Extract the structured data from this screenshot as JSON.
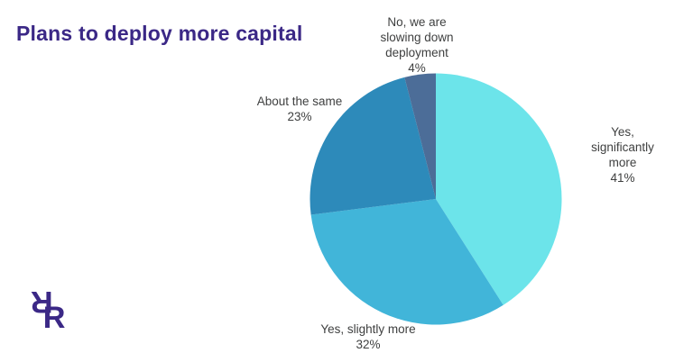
{
  "title": "Plans to deploy more capital",
  "colors": {
    "title": "#3b2886",
    "label_text": "#3f4040",
    "background": "#ffffff",
    "logo": "#3b2886"
  },
  "logo": {
    "letter": "R"
  },
  "chart_data": {
    "type": "pie",
    "title": "Plans to deploy more capital",
    "start_angle_deg": -90,
    "direction": "clockwise",
    "legend_position": "none",
    "categories": [
      "Yes, significantly more",
      "Yes, slightly more",
      "About the same",
      "No, we are slowing down deployment"
    ],
    "values": [
      41,
      32,
      23,
      4
    ],
    "slices": [
      {
        "label": "Yes, significantly more",
        "value": 41,
        "pct": "41%",
        "color": "#6ce4ea",
        "display": "Yes,\nsignificantly\nmore\n41%"
      },
      {
        "label": "Yes, slightly more",
        "value": 32,
        "pct": "32%",
        "color": "#41b5d9",
        "display": "Yes, slightly more\n32%"
      },
      {
        "label": "About the same",
        "value": 23,
        "pct": "23%",
        "color": "#2d8aba",
        "display": "About the same\n23%"
      },
      {
        "label": "No, we are slowing down deployment",
        "value": 4,
        "pct": "4%",
        "color": "#4c6d98",
        "display": "No, we are\nslowing down\ndeployment\n4%"
      }
    ]
  }
}
